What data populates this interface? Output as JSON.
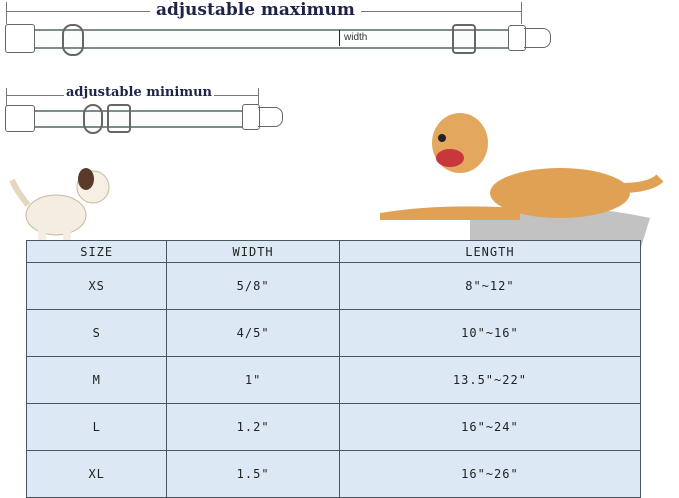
{
  "diagram": {
    "max_label": "adjustable maximum",
    "min_label": "adjustable minimun",
    "width_label": "width"
  },
  "table": {
    "headers": [
      "SIZE",
      "WIDTH",
      "LENGTH"
    ],
    "rows": [
      [
        "XS",
        "5/8\"",
        "8\"~12\""
      ],
      [
        "S",
        "4/5\"",
        "10\"~16\""
      ],
      [
        "M",
        "1\"",
        "13.5\"~22\""
      ],
      [
        "L",
        "1.2\"",
        "16\"~24\""
      ],
      [
        "XL",
        "1.5\"",
        "16\"~26\""
      ]
    ]
  },
  "colors": {
    "table_bg": "#dce9f5",
    "title": "#1e2448",
    "dog_golden": "#e0a155"
  }
}
